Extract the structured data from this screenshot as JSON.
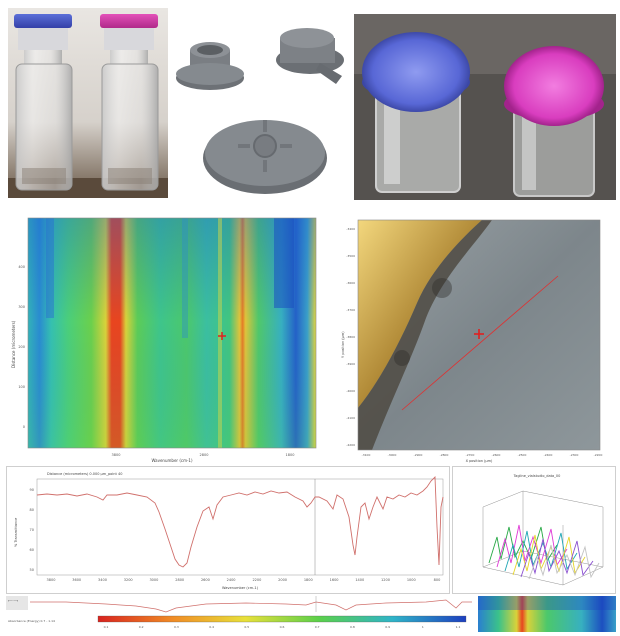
{
  "photos": {
    "vials_photo": "two clear glass vials with blue and pink caps",
    "stoppers_photo": "three grey rubber stoppers",
    "closeup_photo": "close-up of vial tops with blue and pink caps"
  },
  "heatmap": {
    "ylabel": "Distance (micrometers)",
    "xlabel": "Wavenumber (cm-1)",
    "y_ticks": [
      "400",
      "300",
      "200",
      "100",
      "0"
    ],
    "x_ticks": [
      "3800",
      "2800",
      "1800"
    ],
    "colors": {
      "low": "#1d5fcf",
      "mid": "#35c46a",
      "high": "#e23c1c"
    }
  },
  "microscope": {
    "ylabel": "Y position (µm)",
    "xlabel": "X position (µm)",
    "x_ticks": [
      "-3100",
      "-3000",
      "-2900",
      "-2800",
      "-2700",
      "-2600",
      "-2500",
      "-2400",
      "-2300",
      "-2200"
    ],
    "y_ticks": [
      "-3400",
      "-3500",
      "-3600",
      "-3700",
      "-3800",
      "-3900",
      "-4000",
      "-4100",
      "-4200"
    ]
  },
  "spectrum": {
    "legend": "Distance (micrometers) 0.000 µm_point 40",
    "ylabel": "% Transmittance",
    "xlabel": "Wavenumber (cm-1)",
    "y_ticks": [
      "90",
      "80",
      "70",
      "60",
      "50"
    ],
    "x_ticks": [
      "3800",
      "3600",
      "3400",
      "3200",
      "3000",
      "2800",
      "2600",
      "2400",
      "2200",
      "2000",
      "1800",
      "1600",
      "1400",
      "1200",
      "1000",
      "800"
    ]
  },
  "plot3d": {
    "title": "Tagline_vialstudio_data_00"
  },
  "bottom_strip": {
    "colorbar_label": "Absorbance (Energy) 0.7 - 1.14",
    "colorbar_ticks": [
      "0.1",
      "0.2",
      "0.3",
      "0.4",
      "0.5",
      "0.6",
      "0.7",
      "0.8",
      "0.9",
      "1",
      "1.1"
    ]
  }
}
